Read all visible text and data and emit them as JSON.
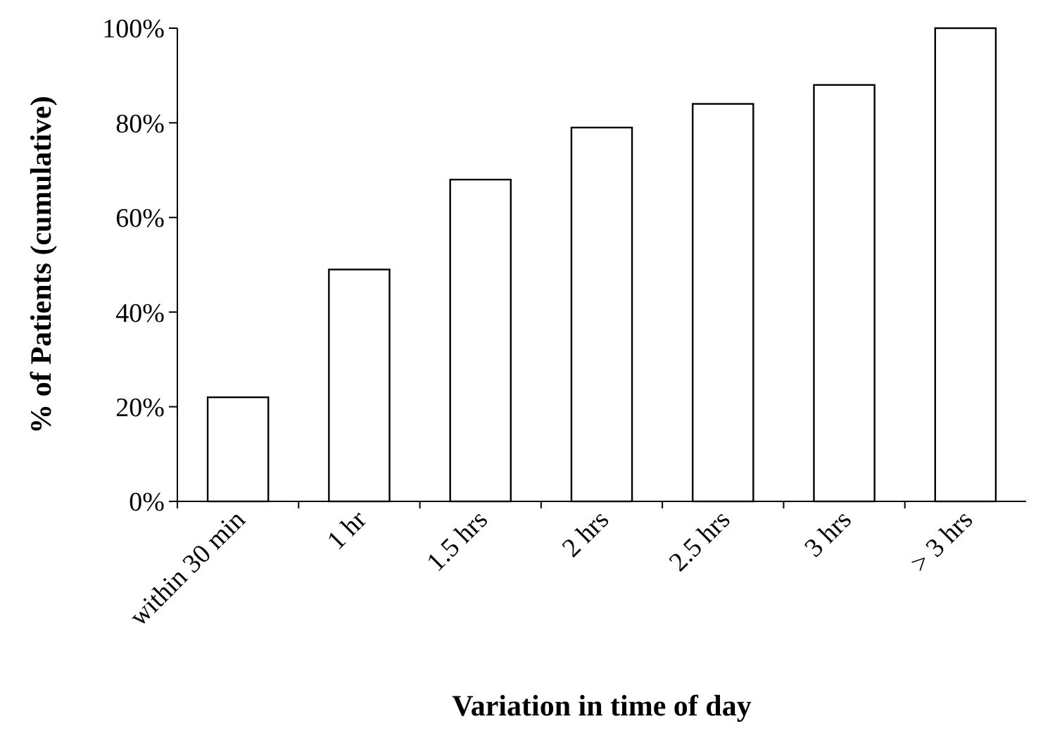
{
  "chart_data": {
    "type": "bar",
    "xlabel": "Variation in time of day",
    "ylabel": "% of Patients (cumulative)",
    "categories": [
      "within 30 min",
      "1 hr",
      "1.5 hrs",
      "2 hrs",
      "2.5 hrs",
      "3 hrs",
      "> 3 hrs"
    ],
    "values": [
      22,
      49,
      68,
      79,
      84,
      88,
      100
    ],
    "color": "#ffffff",
    "ylim": [
      0,
      100
    ],
    "yticks": [
      {
        "value": 0,
        "label": "0%"
      },
      {
        "value": 20,
        "label": "20%"
      },
      {
        "value": 40,
        "label": "40%"
      },
      {
        "value": 60,
        "label": "60%"
      },
      {
        "value": 80,
        "label": "80%"
      },
      {
        "value": 100,
        "label": "100%"
      }
    ],
    "grid": false
  }
}
